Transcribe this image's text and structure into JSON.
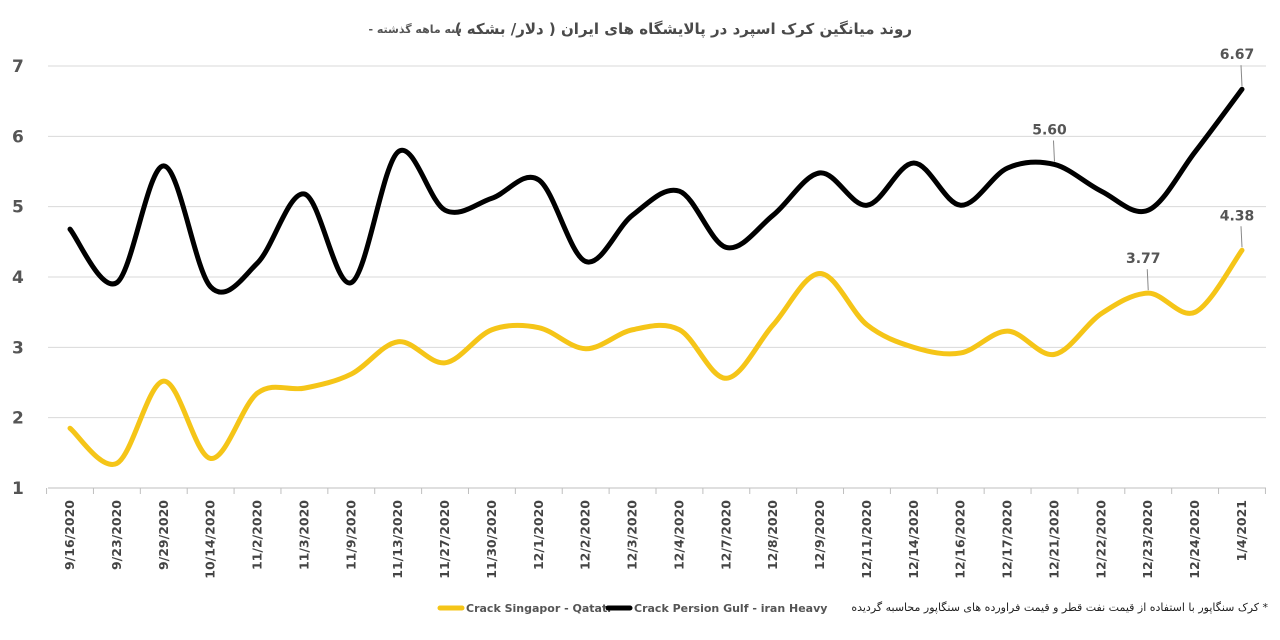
{
  "chart_data": {
    "type": "line",
    "title": "روند میانگین کرک اسپرد در پالایشگاه های ایران ( دلار/ بشکه )",
    "subtitle": "- سه ماهه گذشته",
    "categories": [
      "9/16/2020",
      "9/23/2020",
      "9/29/2020",
      "10/14/2020",
      "11/2/2020",
      "11/3/2020",
      "11/9/2020",
      "11/13/2020",
      "11/27/2020",
      "11/30/2020",
      "12/1/2020",
      "12/2/2020",
      "12/3/2020",
      "12/4/2020",
      "12/7/2020",
      "12/8/2020",
      "12/9/2020",
      "12/11/2020",
      "12/14/2020",
      "12/16/2020",
      "12/17/2020",
      "12/21/2020",
      "12/22/2020",
      "12/23/2020",
      "12/24/2020",
      "1/4/2021"
    ],
    "ylim": [
      1,
      7
    ],
    "yticks": [
      "1",
      "2",
      "3",
      "4",
      "5",
      "6",
      "7"
    ],
    "grid": true,
    "legend_position": "bottom",
    "series": [
      {
        "name": "Crack Singapor - Qatatr",
        "color": "#F5C518",
        "values": [
          1.85,
          1.35,
          2.52,
          1.42,
          2.35,
          2.42,
          2.62,
          3.08,
          2.78,
          3.25,
          3.28,
          2.98,
          3.25,
          3.25,
          2.56,
          3.32,
          4.05,
          3.32,
          3.0,
          2.92,
          3.23,
          2.9,
          3.48,
          3.77,
          3.5,
          4.38
        ],
        "data_labels": {
          "23": "3.77",
          "25": "4.38"
        }
      },
      {
        "name": "Crack Persion Gulf - iran Heavy",
        "color": "#000000",
        "values": [
          4.68,
          3.92,
          5.58,
          3.86,
          4.2,
          5.18,
          3.92,
          5.78,
          4.95,
          5.12,
          5.38,
          4.22,
          4.88,
          5.22,
          4.42,
          4.88,
          5.48,
          5.02,
          5.62,
          5.02,
          5.55,
          5.6,
          5.22,
          4.95,
          5.78,
          6.67
        ],
        "data_labels": {
          "21": "5.60",
          "25": "6.67"
        }
      }
    ],
    "footnote": "کرک سنگاپور با استفاده از قیمت نفت قطر و قیمت فراورده های سنگاپور محاسبه گردیده  *"
  }
}
